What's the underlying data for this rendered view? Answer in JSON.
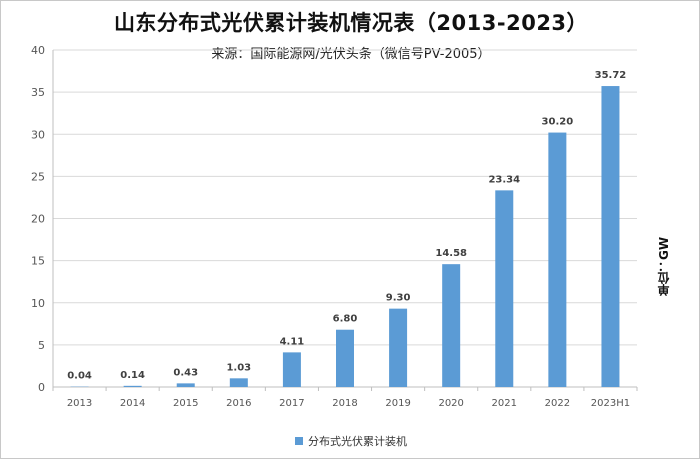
{
  "chart_data": {
    "type": "bar",
    "title": "山东分布式光伏累计装机情况表（2013-2023）",
    "subtitle": "来源：国际能源网/光伏头条（微信号PV-2005）",
    "unit_label": "单位：GW",
    "categories": [
      "2013",
      "2014",
      "2015",
      "2016",
      "2017",
      "2018",
      "2019",
      "2020",
      "2021",
      "2022",
      "2023H1"
    ],
    "series": [
      {
        "name": "分布式光伏累计装机",
        "values": [
          0.04,
          0.14,
          0.43,
          1.03,
          4.11,
          6.8,
          9.3,
          14.58,
          23.34,
          30.2,
          35.72
        ],
        "value_labels": [
          "0.04",
          "0.14",
          "0.43",
          "1.03",
          "4.11",
          "6.80",
          "9.30",
          "14.58",
          "23.34",
          "30.20",
          "35.72"
        ],
        "color": "#5b9bd5"
      }
    ],
    "ylim": [
      0,
      40
    ],
    "yticks": [
      "0",
      "5",
      "10",
      "15",
      "20",
      "25",
      "30",
      "35",
      "40"
    ],
    "ytick_values": [
      0,
      5,
      10,
      15,
      20,
      25,
      30,
      35,
      40
    ],
    "grid": true,
    "legend_position": "bottom"
  }
}
